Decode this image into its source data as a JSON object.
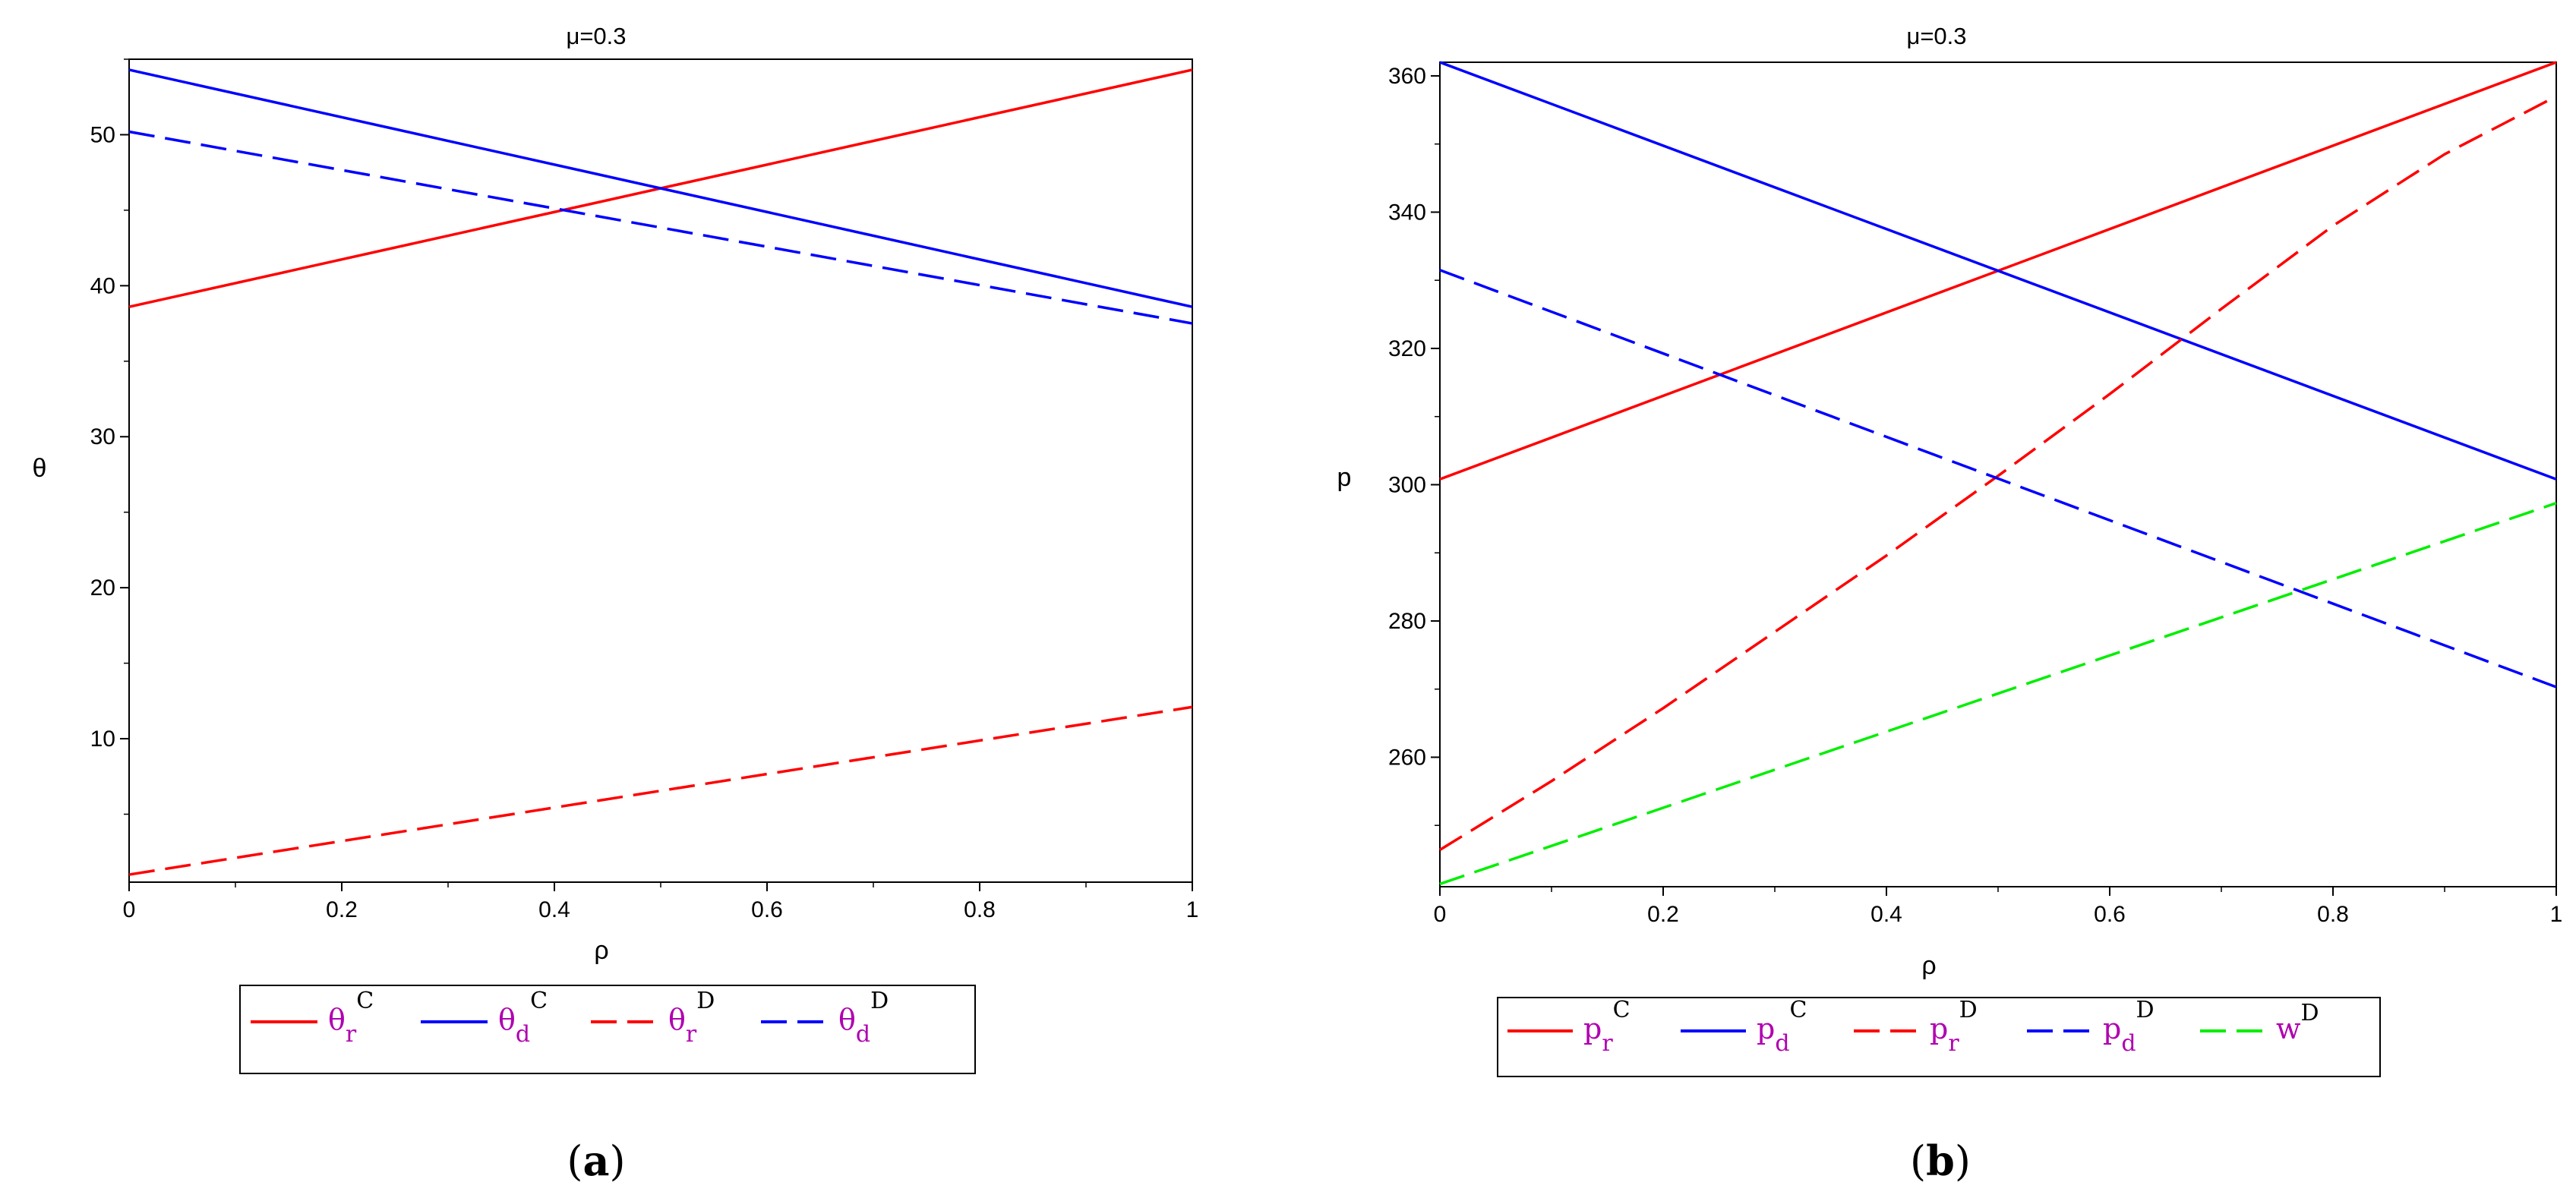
{
  "colors": {
    "red": "#ff0000",
    "blue": "#0000ff",
    "green": "#00ee00",
    "legend_text": "#b000b0"
  },
  "chart_data": [
    {
      "type": "line",
      "panel_label": "a",
      "title": "μ=0.3",
      "xlabel": "ρ",
      "ylabel": "θ",
      "xlim": [
        0,
        1
      ],
      "ylim": [
        0.5,
        55
      ],
      "xticks": [
        0,
        0.2,
        0.4,
        0.6,
        0.8,
        1
      ],
      "xtick_labels": [
        "0",
        "0.2",
        "0.4",
        "0.6",
        "0.8",
        "1"
      ],
      "yticks": [
        10,
        20,
        30,
        40,
        50
      ],
      "ytick_labels": [
        "10",
        "20",
        "30",
        "40",
        "50"
      ],
      "legend_position": "bottom",
      "series": [
        {
          "base": "θ",
          "sub": "r",
          "sup": "C",
          "color": "#ff0000",
          "dash": false,
          "x": [
            0,
            1
          ],
          "y": [
            38.6,
            54.3
          ]
        },
        {
          "base": "θ",
          "sub": "d",
          "sup": "C",
          "color": "#0000ff",
          "dash": false,
          "x": [
            0,
            1
          ],
          "y": [
            54.3,
            38.6
          ]
        },
        {
          "base": "θ",
          "sub": "r",
          "sup": "D",
          "color": "#ff0000",
          "dash": true,
          "x": [
            0,
            1
          ],
          "y": [
            1.0,
            12.1
          ]
        },
        {
          "base": "θ",
          "sub": "d",
          "sup": "D",
          "color": "#0000ff",
          "dash": true,
          "x": [
            0,
            1
          ],
          "y": [
            50.2,
            37.5
          ]
        }
      ]
    },
    {
      "type": "line",
      "panel_label": "b",
      "title": "μ=0.3",
      "xlabel": "ρ",
      "ylabel": "p",
      "xlim": [
        0,
        1
      ],
      "ylim": [
        241,
        362
      ],
      "xticks": [
        0,
        0.2,
        0.4,
        0.6,
        0.8,
        1
      ],
      "xtick_labels": [
        "0",
        "0.2",
        "0.4",
        "0.6",
        "0.8",
        "1"
      ],
      "yticks": [
        260,
        280,
        300,
        320,
        340,
        360
      ],
      "ytick_labels": [
        "260",
        "280",
        "300",
        "320",
        "340",
        "360"
      ],
      "legend_position": "bottom",
      "series": [
        {
          "base": "p",
          "sub": "r",
          "sup": "C",
          "color": "#ff0000",
          "dash": false,
          "x": [
            0,
            1
          ],
          "y": [
            300.8,
            362.0
          ]
        },
        {
          "base": "p",
          "sub": "d",
          "sup": "C",
          "color": "#0000ff",
          "dash": false,
          "x": [
            0,
            1
          ],
          "y": [
            362.0,
            300.8
          ]
        },
        {
          "base": "p",
          "sub": "r",
          "sup": "D",
          "color": "#ff0000",
          "dash": true,
          "x": [
            0,
            0.1,
            0.2,
            0.3,
            0.4,
            0.5,
            0.6,
            0.7,
            0.8,
            0.9,
            1
          ],
          "y": [
            246.4,
            256.5,
            267.2,
            278.4,
            289.6,
            301.3,
            313.3,
            325.8,
            338.0,
            348.5,
            357.0
          ]
        },
        {
          "base": "p",
          "sub": "d",
          "sup": "D",
          "color": "#0000ff",
          "dash": true,
          "x": [
            0,
            1
          ],
          "y": [
            331.5,
            270.3
          ]
        },
        {
          "base": "w",
          "sub": "",
          "sup": "D",
          "color": "#00ee00",
          "dash": true,
          "x": [
            0,
            1
          ],
          "y": [
            241.4,
            297.3
          ]
        }
      ]
    }
  ]
}
